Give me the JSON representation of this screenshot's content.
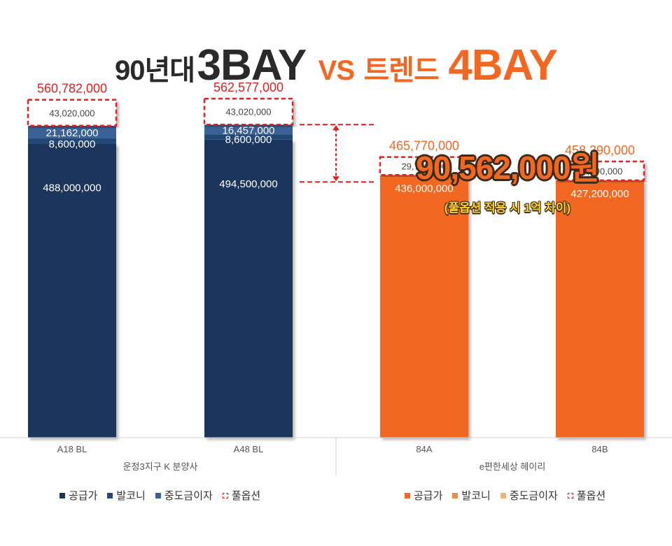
{
  "title": {
    "part1": "90년대",
    "part2": "3BAY",
    "part3": "VS",
    "part4": "트렌드",
    "part5": "4BAY"
  },
  "callout": {
    "amount": "90,562,000원",
    "note": "(풀옵션 적용 시 1억 차이)"
  },
  "chart_data": {
    "type": "bar",
    "stacked": true,
    "categories": [
      "A18 BL",
      "A48 BL",
      "84A",
      "84B"
    ],
    "groups": [
      {
        "label": "운정3지구 K 분양사",
        "categories": [
          "A18 BL",
          "A48 BL"
        ]
      },
      {
        "label": "e편한세상 헤이리",
        "categories": [
          "84A",
          "84B"
        ]
      }
    ],
    "series": [
      {
        "name": "공급가",
        "values": [
          488000000,
          494500000,
          436000000,
          427200000
        ],
        "value_labels": [
          "488,000,000",
          "494,500,000",
          "436,000,000",
          "427,200,000"
        ]
      },
      {
        "name": "발코니",
        "values": [
          8600000,
          8600000,
          0,
          0
        ],
        "value_labels": [
          "8,600,000",
          "8,600,000",
          "",
          ""
        ]
      },
      {
        "name": "중도금이자",
        "values": [
          21162000,
          16457000,
          0,
          0
        ],
        "value_labels": [
          "21,162,000",
          "16,457,000",
          "",
          ""
        ]
      },
      {
        "name": "풀옵션",
        "values": [
          43020000,
          43020000,
          29770000,
          31090000
        ],
        "value_labels": [
          "43,020,000",
          "43,020,000",
          "29,770,000",
          "31,090,000"
        ]
      }
    ],
    "totals": [
      560782000,
      562577000,
      465770000,
      458290000
    ],
    "total_labels": [
      "560,782,000",
      "562,577,000",
      "465,770,000",
      "458,290,000"
    ],
    "colors": {
      "navy_supply": "#1a365d",
      "navy_balcony": "#234878",
      "navy_interest": "#3a6296",
      "orange_supply": "#f26722",
      "orange_balcony": "#e88a48",
      "orange_interest": "#f2b27a",
      "option_border": "#e02020",
      "total_navy": "#e02020",
      "total_orange": "#f26722"
    }
  },
  "legend_left": [
    {
      "label": "공급가",
      "color": "#1a365d"
    },
    {
      "label": "발코니",
      "color": "#234878"
    },
    {
      "label": "중도금이자",
      "color": "#3a6296"
    },
    {
      "label": "풀옵션",
      "color": "dashed"
    }
  ],
  "legend_right": [
    {
      "label": "공급가",
      "color": "#f26722"
    },
    {
      "label": "발코니",
      "color": "#e88a48"
    },
    {
      "label": "중도금이자",
      "color": "#f2b27a"
    },
    {
      "label": "풀옵션",
      "color": "dashed"
    }
  ]
}
